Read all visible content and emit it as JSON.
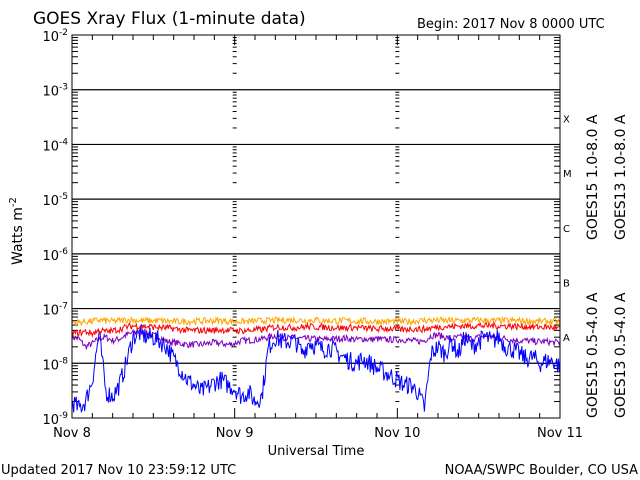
{
  "chart_data": {
    "type": "line",
    "title": "GOES Xray Flux (1-minute data)",
    "subtitle": "Begin:  2017 Nov 8 0000 UTC",
    "xlabel": "Universal Time",
    "ylabel": "Watts m",
    "ylabel_superscript": "-2",
    "y_scale": "log",
    "ylim": [
      1e-09,
      0.01
    ],
    "y_ticks": [
      {
        "base": "10",
        "exp": "-2",
        "value": 0.01
      },
      {
        "base": "10",
        "exp": "-3",
        "value": 0.001
      },
      {
        "base": "10",
        "exp": "-4",
        "value": 0.0001
      },
      {
        "base": "10",
        "exp": "-5",
        "value": 1e-05
      },
      {
        "base": "10",
        "exp": "-6",
        "value": 1e-06
      },
      {
        "base": "10",
        "exp": "-7",
        "value": 1e-07
      },
      {
        "base": "10",
        "exp": "-8",
        "value": 1e-08
      },
      {
        "base": "10",
        "exp": "-9",
        "value": 1e-09
      }
    ],
    "x_ticks": [
      "Nov 8",
      "Nov 9",
      "Nov 10",
      "Nov 11"
    ],
    "x_range_hours": [
      0,
      72
    ],
    "grid": "horizontal lines at each decade from 1e-3 to 1e-8",
    "flare_classes": [
      {
        "label": "X",
        "value": 0.0003
      },
      {
        "label": "M",
        "value": 3e-05
      },
      {
        "label": "C",
        "value": 3e-06
      },
      {
        "label": "B",
        "value": 3e-07
      },
      {
        "label": "A",
        "value": 3e-08
      }
    ],
    "legend_placement": "right, vertical",
    "series": [
      {
        "name": "GOES15 1.0-8.0 A",
        "color": "#ff0000",
        "values": [
          3.5e-08,
          3.6e-08,
          3.8e-08,
          3.5e-08,
          4e-08,
          3.8e-08,
          3.9e-08,
          4.2e-08,
          4.6e-08,
          4.8e-08,
          4.8e-08,
          4.7e-08,
          4.6e-08,
          4.5e-08,
          4.4e-08,
          4.3e-08,
          4.1e-08,
          4e-08,
          4e-08,
          4e-08,
          4e-08,
          4e-08,
          4.1e-08,
          4e-08,
          4e-08,
          3.9e-08,
          4e-08,
          4.1e-08,
          4.1e-08,
          4.4e-08,
          4.6e-08,
          4.6e-08,
          4.5e-08,
          4.5e-08,
          4.6e-08,
          4.7e-08,
          4.6e-08,
          4.6e-08,
          4.5e-08,
          4.5e-08,
          4.4e-08,
          4.5e-08,
          4.5e-08,
          4.4e-08,
          4.3e-08,
          4.2e-08,
          4.3e-08,
          4.3e-08,
          4.2e-08,
          4.1e-08,
          4.3e-08,
          4.2e-08,
          4.2e-08,
          4.4e-08,
          4.6e-08,
          4.7e-08,
          4.7e-08,
          4.8e-08,
          4.8e-08,
          4.8e-08,
          4.9e-08,
          4.8e-08,
          4.9e-08,
          4.8e-08,
          4.8e-08,
          4.8e-08,
          4.7e-08,
          4.7e-08,
          4.6e-08,
          4.6e-08,
          4.6e-08,
          4.5e-08,
          4.3e-08
        ]
      },
      {
        "name": "GOES13 1.0-8.0 A",
        "color": "#ffa500",
        "values": [
          5.5e-08,
          5.6e-08,
          5.8e-08,
          5.8e-08,
          6.2e-08,
          6e-08,
          5.9e-08,
          6e-08,
          6.2e-08,
          6.2e-08,
          6e-08,
          6e-08,
          6e-08,
          6e-08,
          5.9e-08,
          5.8e-08,
          5.8e-08,
          5.8e-08,
          5.9e-08,
          5.9e-08,
          6e-08,
          6e-08,
          6e-08,
          5.9e-08,
          5.8e-08,
          5.8e-08,
          5.8e-08,
          5.9e-08,
          6e-08,
          6e-08,
          6.1e-08,
          6.1e-08,
          6.2e-08,
          6.2e-08,
          6.1e-08,
          6.1e-08,
          6.2e-08,
          6e-08,
          6e-08,
          6e-08,
          6e-08,
          5.9e-08,
          5.9e-08,
          5.9e-08,
          5.8e-08,
          5.8e-08,
          5.8e-08,
          5.8e-08,
          5.8e-08,
          5.8e-08,
          5.8e-08,
          6e-08,
          6.1e-08,
          6.1e-08,
          6.1e-08,
          6e-08,
          6e-08,
          6e-08,
          6e-08,
          6.1e-08,
          6.1e-08,
          6.1e-08,
          6e-08,
          6e-08,
          6e-08,
          6e-08,
          6e-08,
          5.9e-08,
          5.9e-08,
          5.8e-08,
          5.8e-08,
          5.8e-08,
          5.6e-08
        ]
      },
      {
        "name": "GOES15 0.5-4.0 A",
        "color": "#0000ff",
        "values": [
          2e-09,
          1.5e-09,
          2e-09,
          5e-09,
          3.5e-08,
          3e-09,
          2.5e-09,
          4e-09,
          1e-08,
          3e-08,
          3.5e-08,
          3e-08,
          3e-08,
          2.5e-08,
          2e-08,
          1.2e-08,
          8e-09,
          5e-09,
          4e-09,
          3e-09,
          3.5e-09,
          4.5e-09,
          5e-09,
          4e-09,
          3.5e-09,
          2.5e-09,
          3e-09,
          2e-09,
          2.5e-09,
          2e-08,
          3e-08,
          2.5e-08,
          2.5e-08,
          2.5e-08,
          1.5e-08,
          2.5e-08,
          2e-08,
          1.8e-08,
          2e-08,
          1.6e-08,
          1.3e-08,
          1.1e-08,
          1e-08,
          1.2e-08,
          1e-08,
          8e-09,
          7e-09,
          6e-09,
          5e-09,
          4e-09,
          4e-09,
          3e-09,
          1.5e-09,
          1.5e-08,
          2e-08,
          1.5e-08,
          2.5e-08,
          1.5e-08,
          3e-08,
          2e-08,
          2.5e-08,
          3e-08,
          2.5e-08,
          3e-08,
          2e-08,
          1.8e-08,
          1.5e-08,
          1.2e-08,
          1.3e-08,
          1e-08,
          1.1e-08,
          1.1e-08,
          9e-09
        ]
      },
      {
        "name": "GOES13 0.5-4.0 A",
        "color": "#7b00c0",
        "values": [
          3e-08,
          2.8e-08,
          2e-08,
          2.3e-08,
          2.8e-08,
          3e-08,
          2.6e-08,
          2.8e-08,
          3.3e-08,
          3.6e-08,
          3.8e-08,
          3.5e-08,
          3.2e-08,
          3e-08,
          2.5e-08,
          2.4e-08,
          2.3e-08,
          2.2e-08,
          2.2e-08,
          2.2e-08,
          2.3e-08,
          2.4e-08,
          2.3e-08,
          2.2e-08,
          2.3e-08,
          2.6e-08,
          2.6e-08,
          2.7e-08,
          2.8e-08,
          3e-08,
          3.2e-08,
          3e-08,
          2.9e-08,
          2.9e-08,
          2.8e-08,
          2.8e-08,
          2.8e-08,
          2.7e-08,
          2.8e-08,
          2.8e-08,
          2.9e-08,
          2.8e-08,
          2.7e-08,
          2.8e-08,
          2.7e-08,
          2.8e-08,
          2.7e-08,
          2.7e-08,
          2.7e-08,
          2.7e-08,
          2.6e-08,
          2.5e-08,
          2.6e-08,
          3.2e-08,
          3.3e-08,
          3e-08,
          2.8e-08,
          3e-08,
          3e-08,
          2.8e-08,
          3e-08,
          3.2e-08,
          3e-08,
          3e-08,
          2.8e-08,
          2.7e-08,
          2.6e-08,
          2.6e-08,
          2.5e-08,
          2.5e-08,
          2.5e-08,
          2.4e-08,
          2.4e-08
        ]
      }
    ]
  },
  "footer": {
    "updated": "Updated 2017 Nov 10 23:59:12 UTC",
    "credit": "NOAA/SWPC Boulder, CO USA"
  }
}
